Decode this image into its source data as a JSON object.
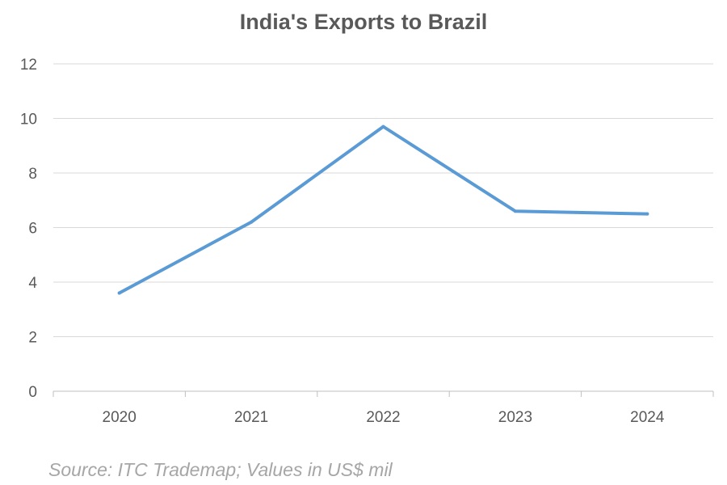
{
  "chart_data": {
    "type": "line",
    "title": "India's Exports to Brazil",
    "xlabel": "",
    "ylabel": "",
    "categories": [
      "2020",
      "2021",
      "2022",
      "2023",
      "2024"
    ],
    "series": [
      {
        "values": [
          3.6,
          6.2,
          9.7,
          6.6,
          6.5
        ]
      }
    ],
    "ylim": [
      0,
      12
    ],
    "yticks": [
      0,
      2,
      4,
      6,
      8,
      10,
      12
    ],
    "grid": true,
    "line_color": "#5b9bd5"
  },
  "footer": {
    "source": "Source: ITC Trademap; Values in US$ mil"
  }
}
